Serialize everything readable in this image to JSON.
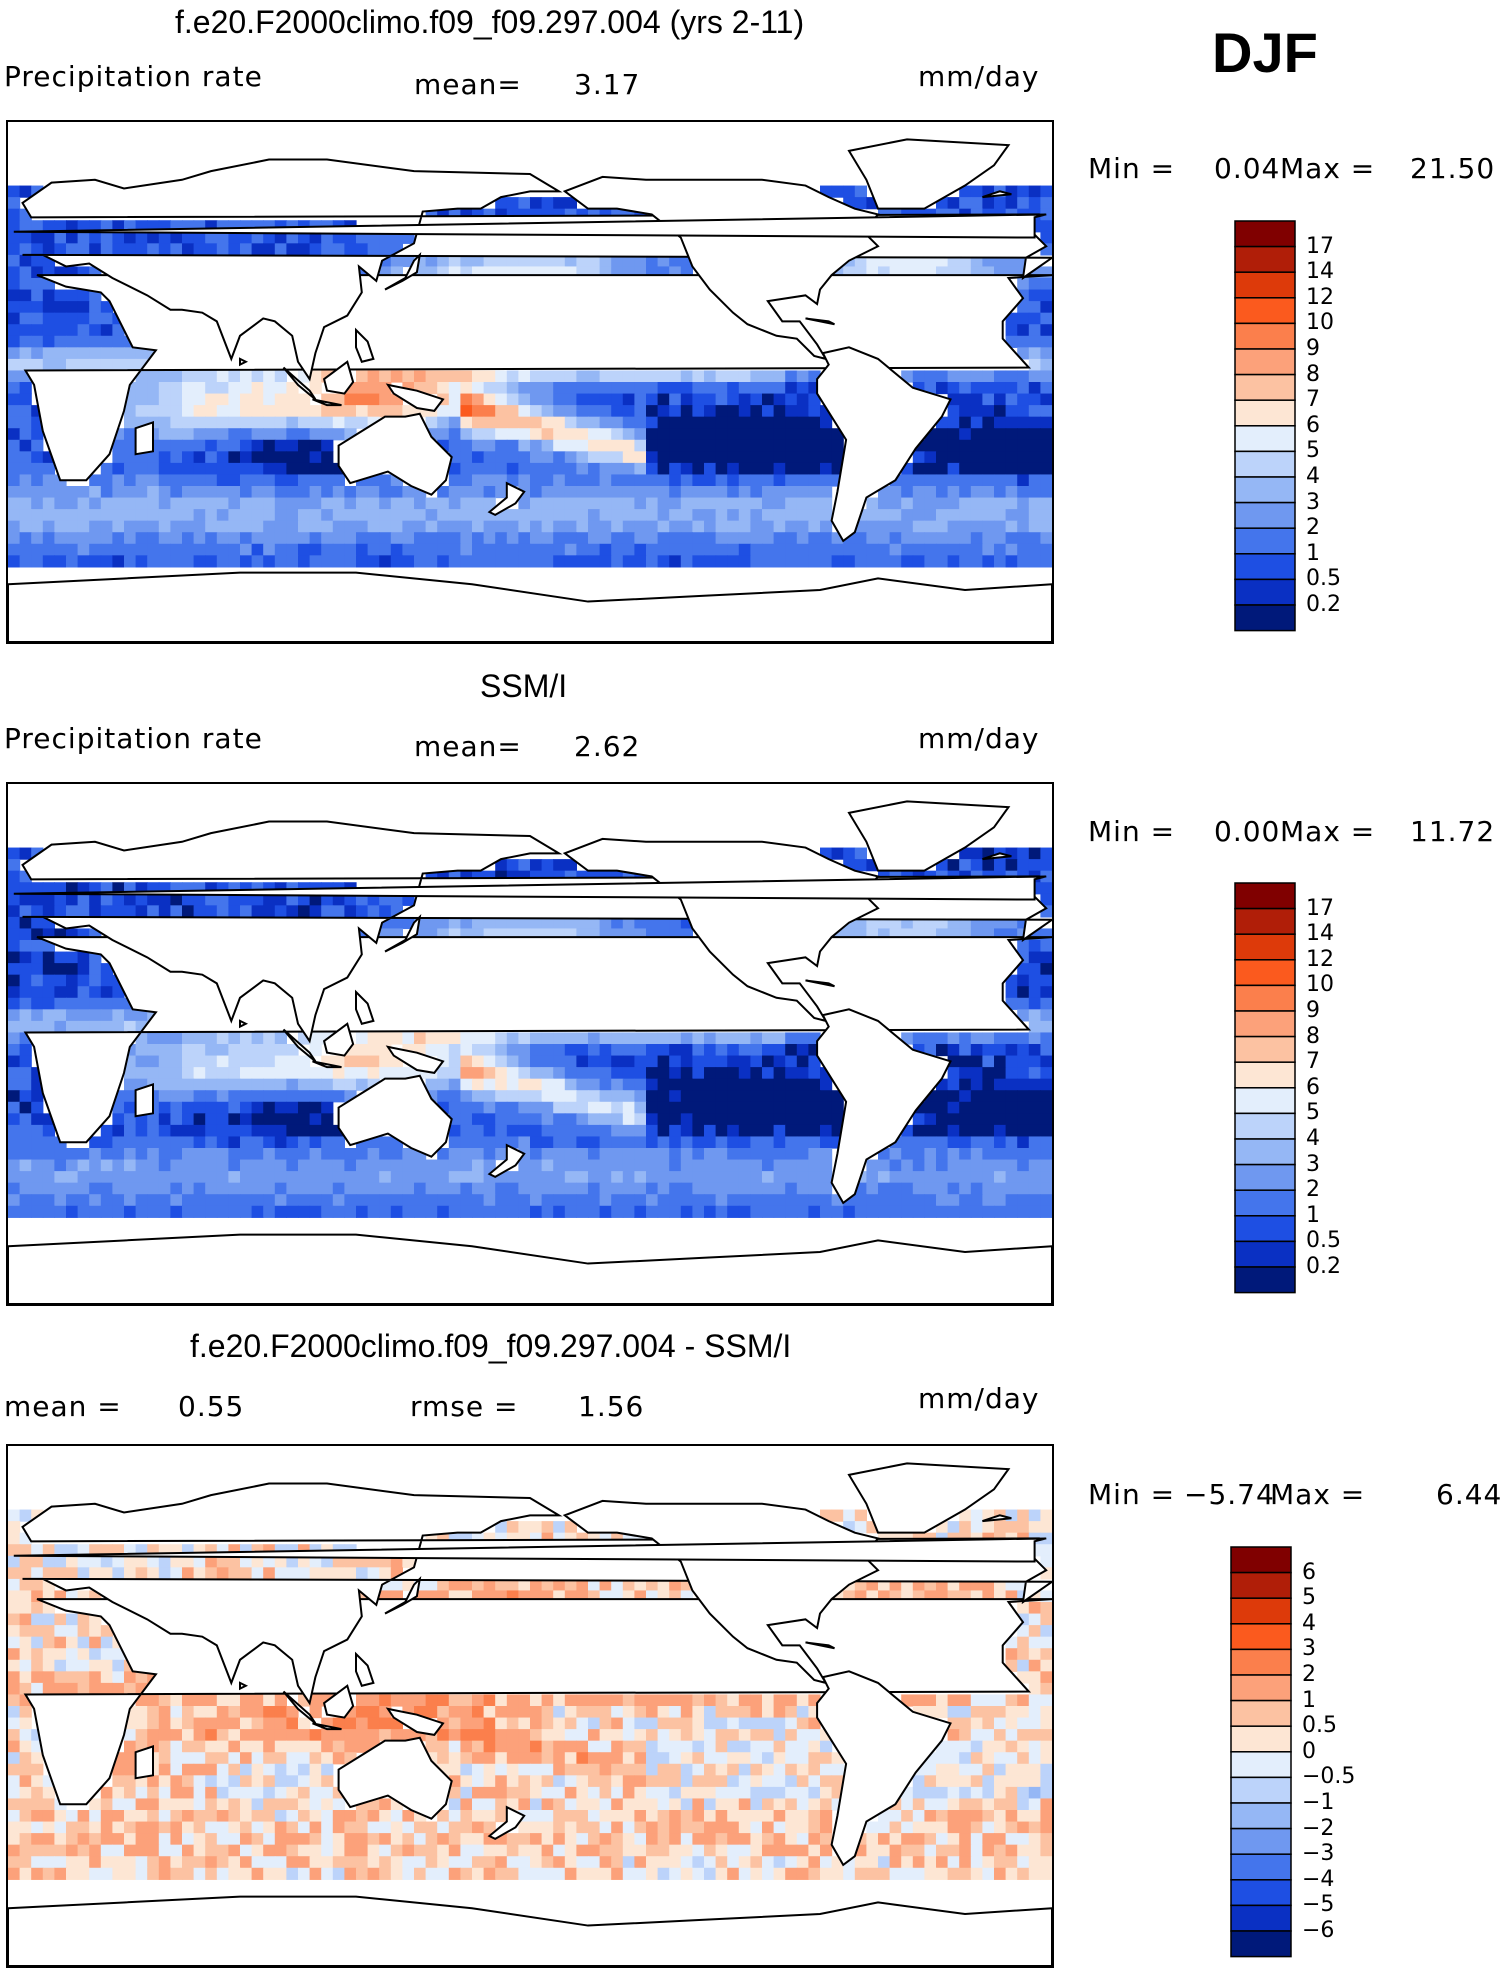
{
  "season": "DJF",
  "panels": [
    {
      "title": "f.e20.F2000climo.f09_f09.297.004 (yrs 2-11)",
      "left_label": "Precipitation rate",
      "mid_label": "mean=",
      "mid_value": "3.17",
      "units": "mm/day",
      "min_label": "Min =",
      "min_value": "0.04",
      "max_label": "Max =",
      "max_value": "21.50",
      "colorbar_labels": [
        "17",
        "14",
        "12",
        "10",
        "9",
        "8",
        "7",
        "6",
        "5",
        "4",
        "3",
        "2",
        "1",
        "0.5",
        "0.2"
      ],
      "colorbar_colors": [
        "#800000",
        "#b01e08",
        "#dd3a0a",
        "#fb5a1e",
        "#fb7f4c",
        "#fca17a",
        "#fcc2a2",
        "#fde6d4",
        "#e3eefc",
        "#bcd3fa",
        "#95b7f5",
        "#6f98f0",
        "#4475ec",
        "#1e4fe3",
        "#0a30c3",
        "#00197a"
      ],
      "map_type": "model"
    },
    {
      "title": "SSM/I",
      "left_label": "Precipitation rate",
      "mid_label": "mean=",
      "mid_value": "2.62",
      "units": "mm/day",
      "min_label": "Min =",
      "min_value": "0.00",
      "max_label": "Max =",
      "max_value": "11.72",
      "colorbar_labels": [
        "17",
        "14",
        "12",
        "10",
        "9",
        "8",
        "7",
        "6",
        "5",
        "4",
        "3",
        "2",
        "1",
        "0.5",
        "0.2"
      ],
      "colorbar_colors": [
        "#800000",
        "#b01e08",
        "#dd3a0a",
        "#fb5a1e",
        "#fb7f4c",
        "#fca17a",
        "#fcc2a2",
        "#fde6d4",
        "#e3eefc",
        "#bcd3fa",
        "#95b7f5",
        "#6f98f0",
        "#4475ec",
        "#1e4fe3",
        "#0a30c3",
        "#00197a"
      ],
      "map_type": "obs"
    },
    {
      "title": "f.e20.F2000climo.f09_f09.297.004 - SSM/I",
      "left_label": "mean =",
      "left_value": "0.55",
      "mid_label": "rmse =",
      "mid_value": "1.56",
      "units": "mm/day",
      "min_label": "Min =",
      "min_value": "−5.74",
      "max_label": "Max =",
      "max_value": "6.44",
      "colorbar_labels": [
        "6",
        "5",
        "4",
        "3",
        "2",
        "1",
        "0.5",
        "0",
        "−0.5",
        "−1",
        "−2",
        "−3",
        "−4",
        "−5",
        "−6"
      ],
      "colorbar_colors": [
        "#800000",
        "#b01e08",
        "#dd3a0a",
        "#fb5a1e",
        "#fb7f4c",
        "#fca17a",
        "#fcc2a2",
        "#fde6d4",
        "#e3eefc",
        "#bcd3fa",
        "#95b7f5",
        "#6f98f0",
        "#4475ec",
        "#1e4fe3",
        "#0a30c3",
        "#00197a"
      ],
      "map_type": "diff"
    }
  ]
}
